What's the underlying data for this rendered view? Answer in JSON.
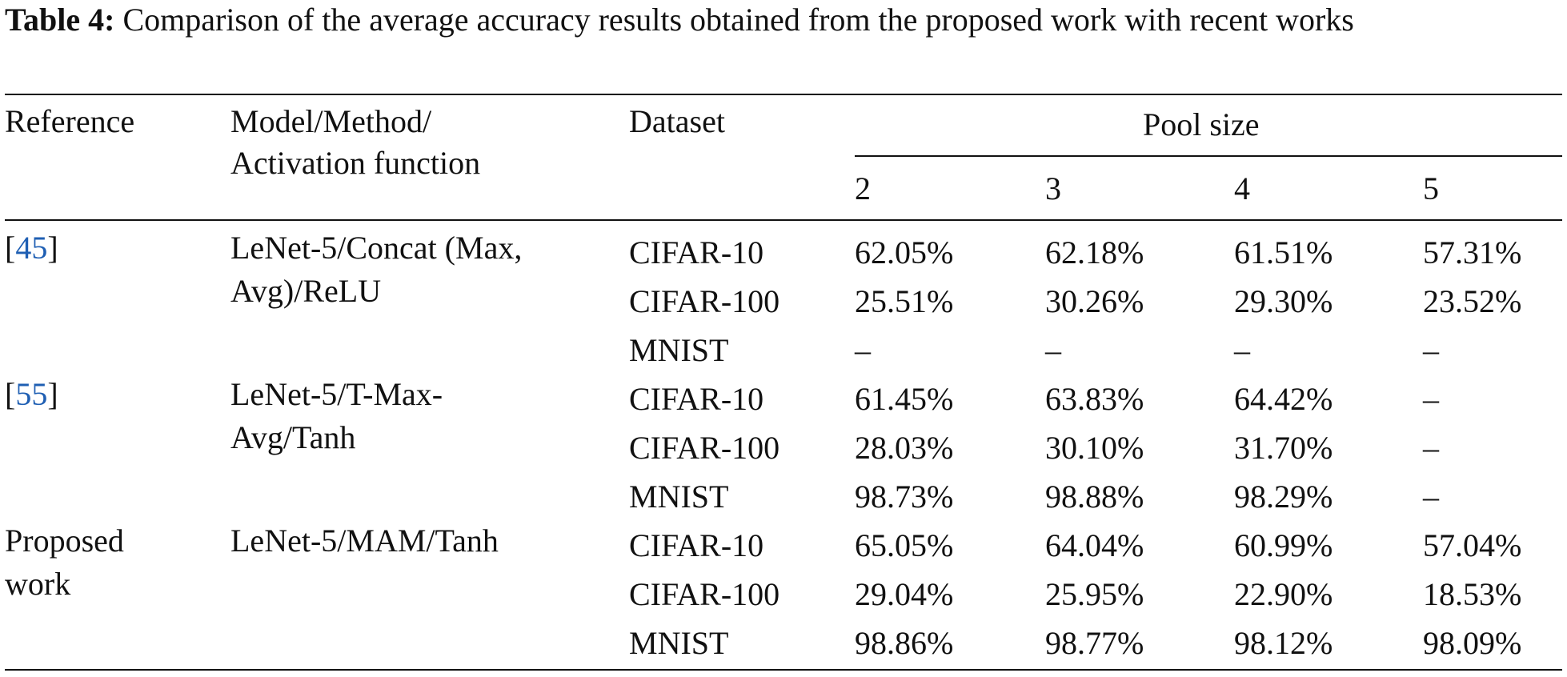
{
  "caption": {
    "label": "Table 4:",
    "text": " Comparison of the average accuracy results obtained from the proposed work with recent works"
  },
  "table": {
    "headers": {
      "reference": "Reference",
      "model_line1": "Model/Method/",
      "model_line2": "Activation function",
      "dataset": "Dataset",
      "pool_size": "Pool size",
      "pools": [
        "2",
        "3",
        "4",
        "5"
      ]
    },
    "groups": [
      {
        "ref_open": "[",
        "ref_num": "45",
        "ref_close": "]",
        "model_line1": "LeNet-5/Concat (Max,",
        "model_line2": "Avg)/ReLU",
        "rows": [
          {
            "dataset": "CIFAR-10",
            "values": [
              "62.05%",
              "62.18%",
              "61.51%",
              "57.31%"
            ]
          },
          {
            "dataset": "CIFAR-100",
            "values": [
              "25.51%",
              "30.26%",
              "29.30%",
              "23.52%"
            ]
          },
          {
            "dataset": "MNIST",
            "values": [
              "–",
              "–",
              "–",
              "–"
            ]
          }
        ]
      },
      {
        "ref_open": "[",
        "ref_num": "55",
        "ref_close": "]",
        "model_line1": "LeNet-5/T-Max-",
        "model_line2": "Avg/Tanh",
        "rows": [
          {
            "dataset": "CIFAR-10",
            "values": [
              "61.45%",
              "63.83%",
              "64.42%",
              "–"
            ]
          },
          {
            "dataset": "CIFAR-100",
            "values": [
              "28.03%",
              "30.10%",
              "31.70%",
              "–"
            ]
          },
          {
            "dataset": "MNIST",
            "values": [
              "98.73%",
              "98.88%",
              "98.29%",
              "–"
            ]
          }
        ]
      },
      {
        "ref_line1": "Proposed",
        "ref_line2": "work",
        "model_line1": "LeNet-5/MAM/Tanh",
        "model_line2": "",
        "rows": [
          {
            "dataset": "CIFAR-10",
            "values": [
              "65.05%",
              "64.04%",
              "60.99%",
              "57.04%"
            ]
          },
          {
            "dataset": "CIFAR-100",
            "values": [
              "29.04%",
              "25.95%",
              "22.90%",
              "18.53%"
            ]
          },
          {
            "dataset": "MNIST",
            "values": [
              "98.86%",
              "98.77%",
              "98.12%",
              "98.09%"
            ]
          }
        ]
      }
    ]
  }
}
